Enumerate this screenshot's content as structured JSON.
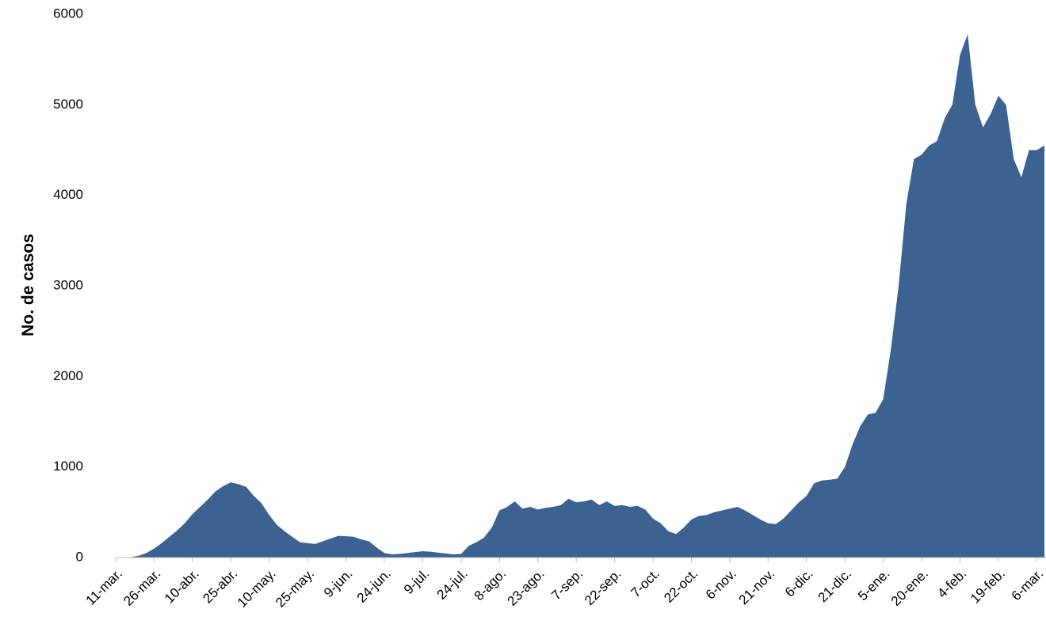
{
  "chart_data": {
    "type": "area",
    "y_label": "No. de casos",
    "color": "#3b6291",
    "categories": [
      "11-mar.",
      null,
      null,
      null,
      null,
      "26-mar.",
      null,
      null,
      null,
      null,
      "10-abr.",
      null,
      null,
      null,
      null,
      "25-abr.",
      null,
      null,
      null,
      null,
      "10-may.",
      null,
      null,
      null,
      null,
      "25-may.",
      null,
      null,
      null,
      null,
      "9-jun.",
      null,
      null,
      null,
      null,
      "24-jun.",
      null,
      null,
      null,
      null,
      "9-jul.",
      null,
      null,
      null,
      null,
      "24-jul.",
      null,
      null,
      null,
      null,
      "8-ago.",
      null,
      null,
      null,
      null,
      "23-ago.",
      null,
      null,
      null,
      null,
      "7-sep.",
      null,
      null,
      null,
      null,
      "22-sep.",
      null,
      null,
      null,
      null,
      "7-oct.",
      null,
      null,
      null,
      null,
      "22-oct.",
      null,
      null,
      null,
      null,
      "6-nov.",
      null,
      null,
      null,
      null,
      "21-nov.",
      null,
      null,
      null,
      null,
      "6-dic.",
      null,
      null,
      null,
      null,
      "21-dic.",
      null,
      null,
      null,
      null,
      "5-ene.",
      null,
      null,
      null,
      null,
      "20-ene.",
      null,
      null,
      null,
      null,
      "4-feb.",
      null,
      null,
      null,
      null,
      "19-feb.",
      null,
      null,
      null,
      null,
      "6-mar.",
      null
    ],
    "values": [
      0,
      0,
      5,
      20,
      50,
      100,
      160,
      230,
      300,
      380,
      480,
      560,
      640,
      730,
      790,
      830,
      810,
      780,
      680,
      600,
      470,
      360,
      290,
      230,
      170,
      160,
      150,
      180,
      210,
      240,
      235,
      230,
      200,
      180,
      110,
      50,
      35,
      40,
      50,
      60,
      70,
      65,
      55,
      45,
      35,
      40,
      130,
      170,
      220,
      330,
      520,
      560,
      620,
      540,
      560,
      530,
      550,
      560,
      580,
      650,
      610,
      620,
      640,
      580,
      620,
      570,
      580,
      560,
      570,
      530,
      430,
      380,
      290,
      260,
      330,
      420,
      460,
      470,
      500,
      520,
      540,
      560,
      520,
      470,
      420,
      380,
      370,
      430,
      520,
      610,
      680,
      820,
      850,
      860,
      870,
      1000,
      1250,
      1450,
      1580,
      1600,
      1750,
      2300,
      3000,
      3900,
      4400,
      4450,
      4550,
      4600,
      4850,
      5000,
      5550,
      5780,
      5000,
      4750,
      4900,
      5100,
      5000,
      4400,
      4200,
      4500,
      4500,
      4550
    ],
    "ylim": [
      0,
      6000
    ],
    "yticks": [
      0,
      1000,
      2000,
      3000,
      4000,
      5000,
      6000
    ]
  }
}
